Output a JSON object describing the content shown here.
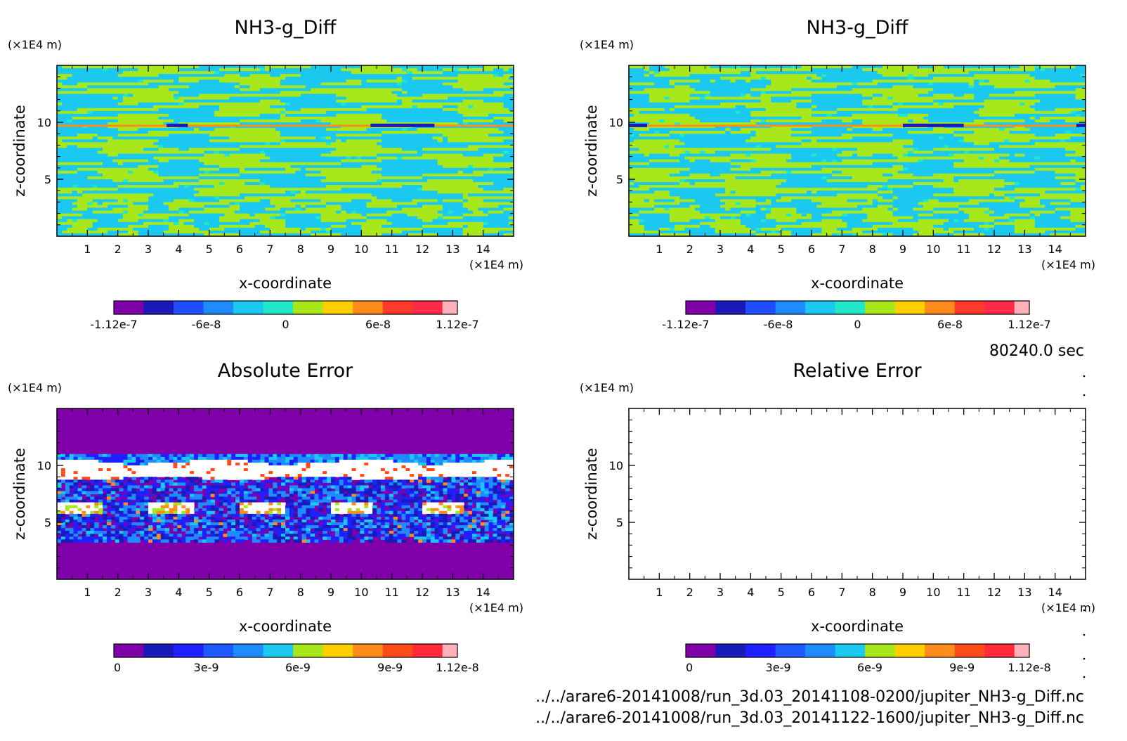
{
  "chart_data": [
    {
      "type": "heatmap",
      "title": "NH3-g_Diff",
      "xlabel": "x-coordinate",
      "ylabel": "z-coordinate",
      "x_unit": "(×1E4 m)",
      "y_unit": "(×1E4 m)",
      "xlim": [
        0,
        15
      ],
      "ylim": [
        0,
        15
      ],
      "x_ticks": [
        "1",
        "2",
        "3",
        "4",
        "5",
        "6",
        "7",
        "8",
        "9",
        "10",
        "11",
        "12",
        "13",
        "14"
      ],
      "y_ticks": [
        "5",
        "10"
      ],
      "colorbar": {
        "min": -1.12e-07,
        "max": 1.12e-07,
        "labels": [
          "-1.12e-7",
          "-6e-8",
          "0",
          "6e-8",
          "1.12e-7"
        ],
        "colors": [
          "#7f00a8",
          "#1a1ab8",
          "#1f4dff",
          "#1e8cff",
          "#1ac8f0",
          "#20e8c8",
          "#a8e81a",
          "#ffd000",
          "#ff8c1a",
          "#ff3a2a",
          "#ff2a4a",
          "#ffb0b8"
        ]
      },
      "field": "banded NH3 difference, alternating cyan (~-1e-8) and yellow-green (~+1e-8) filaments; thin red/blue streak near z=10"
    },
    {
      "type": "heatmap",
      "title": "NH3-g_Diff",
      "xlabel": "x-coordinate",
      "ylabel": "z-coordinate",
      "x_unit": "(×1E4 m)",
      "y_unit": "(×1E4 m)",
      "xlim": [
        0,
        15
      ],
      "ylim": [
        0,
        15
      ],
      "x_ticks": [
        "1",
        "2",
        "3",
        "4",
        "5",
        "6",
        "7",
        "8",
        "9",
        "10",
        "11",
        "12",
        "13",
        "14"
      ],
      "y_ticks": [
        "5",
        "10"
      ],
      "colorbar": {
        "min": -1.12e-07,
        "max": 1.12e-07,
        "labels": [
          "-1.12e-7",
          "-6e-8",
          "0",
          "6e-8",
          "1.12e-7"
        ],
        "colors": [
          "#7f00a8",
          "#1a1ab8",
          "#1f4dff",
          "#1e8cff",
          "#1ac8f0",
          "#20e8c8",
          "#a8e81a",
          "#ffd000",
          "#ff8c1a",
          "#ff3a2a",
          "#ff2a4a",
          "#ffb0b8"
        ]
      }
    },
    {
      "type": "heatmap",
      "title": "Absolute Error",
      "xlabel": "x-coordinate",
      "ylabel": "z-coordinate",
      "x_unit": "(×1E4 m)",
      "y_unit": "(×1E4 m)",
      "xlim": [
        0,
        15
      ],
      "ylim": [
        0,
        15
      ],
      "x_ticks": [
        "1",
        "2",
        "3",
        "4",
        "5",
        "6",
        "7",
        "8",
        "9",
        "10",
        "11",
        "12",
        "13",
        "14"
      ],
      "y_ticks": [
        "5",
        "10"
      ],
      "colorbar": {
        "min": 0,
        "max": 1.12e-08,
        "labels": [
          "0",
          "3e-9",
          "6e-9",
          "9e-9",
          "1.12e-8"
        ],
        "colors": [
          "#7f00a8",
          "#1a1ab8",
          "#1f1fff",
          "#1f5aff",
          "#1e8cff",
          "#1ac8f0",
          "#a8e81a",
          "#ffd000",
          "#ff8c1a",
          "#ff4a1a",
          "#ff2a3a",
          "#ffb0b8"
        ]
      }
    },
    {
      "type": "heatmap",
      "title": "Relative Error",
      "xlabel": "x-coordinate",
      "ylabel": "z-coordinate",
      "x_unit": "(×1E4 m)",
      "y_unit": "(×1E4 m)",
      "xlim": [
        0,
        15
      ],
      "ylim": [
        0,
        15
      ],
      "x_ticks": [
        "1",
        "2",
        "3",
        "4",
        "5",
        "6",
        "7",
        "8",
        "9",
        "10",
        "11",
        "12",
        "13",
        "14"
      ],
      "y_ticks": [
        "5",
        "10"
      ],
      "colorbar": {
        "min": 0,
        "max": 1.12e-08,
        "labels": [
          "0",
          "3e-9",
          "6e-9",
          "9e-9",
          "1.12e-8"
        ],
        "colors": [
          "#7f00a8",
          "#1a1ab8",
          "#1f1fff",
          "#1f5aff",
          "#1e8cff",
          "#1ac8f0",
          "#a8e81a",
          "#ffd000",
          "#ff8c1a",
          "#ff4a1a",
          "#ff2a3a",
          "#ffb0b8"
        ]
      },
      "field": "empty (white)"
    }
  ],
  "time_label": "80240.0 sec",
  "footer": {
    "file1": "../../arare6-20141008/run_3d.03_20141108-0200/jupiter_NH3-g_Diff.nc",
    "file2": "../../arare6-20141008/run_3d.03_20141122-1600/jupiter_NH3-g_Diff.nc"
  }
}
